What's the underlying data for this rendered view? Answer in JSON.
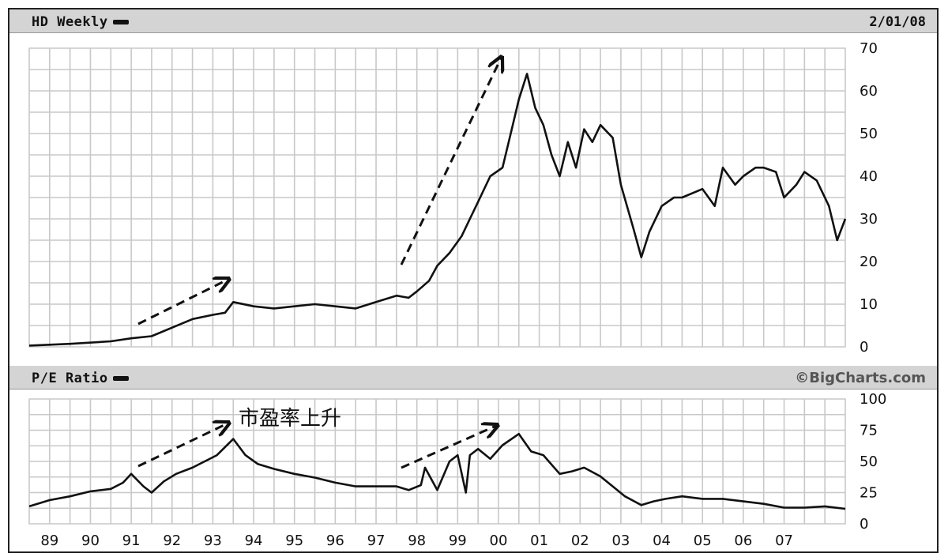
{
  "header": {
    "title": "HD Weekly",
    "date": "2/01/08"
  },
  "lower_header": {
    "title": "P/E Ratio",
    "brand": "©BigCharts.com"
  },
  "annotation": "市盈率上升",
  "colors": {
    "header_bg": "#d4d4d4",
    "grid": "#c8c8c8",
    "line": "#111111"
  },
  "chart_data": [
    {
      "type": "line",
      "title": "HD Weekly",
      "series": [
        {
          "name": "HD Weekly",
          "x": [
            1988.0,
            1989.0,
            1990.0,
            1990.5,
            1991.0,
            1991.5,
            1992.0,
            1992.5,
            1992.8,
            1993.0,
            1993.5,
            1994.0,
            1994.5,
            1995.0,
            1995.5,
            1996.0,
            1996.5,
            1997.0,
            1997.3,
            1997.5,
            1997.8,
            1998.0,
            1998.3,
            1998.6,
            1998.8,
            1999.0,
            1999.3,
            1999.6,
            1999.8,
            2000.0,
            2000.2,
            2000.4,
            2000.6,
            2000.8,
            2001.0,
            2001.2,
            2001.4,
            2001.6,
            2001.8,
            2002.0,
            2002.3,
            2002.5,
            2002.8,
            2003.0,
            2003.2,
            2003.5,
            2003.8,
            2004.0,
            2004.5,
            2004.8,
            2005.0,
            2005.3,
            2005.5,
            2005.8,
            2006.0,
            2006.3,
            2006.5,
            2006.8,
            2007.0,
            2007.3,
            2007.6,
            2007.8,
            2008.0
          ],
          "values": [
            0.3,
            0.7,
            1.3,
            2.0,
            2.5,
            4.5,
            6.5,
            7.5,
            8.0,
            10.5,
            9.5,
            9.0,
            9.5,
            10.0,
            9.5,
            9.0,
            10.5,
            12.0,
            11.5,
            13.0,
            15.5,
            19.0,
            22.0,
            26.0,
            30.0,
            34.0,
            40.0,
            42.0,
            50.0,
            58.0,
            64.0,
            56.0,
            52.0,
            45.0,
            40.0,
            48.0,
            42.0,
            51.0,
            48.0,
            52.0,
            49.0,
            38.0,
            28.0,
            21.0,
            27.0,
            33.0,
            35.0,
            35.0,
            37.0,
            33.0,
            42.0,
            38.0,
            40.0,
            42.0,
            42.0,
            41.0,
            35.0,
            38.0,
            41.0,
            39.0,
            33.0,
            25.0,
            30.0
          ]
        }
      ],
      "ylim": [
        0,
        70
      ],
      "yticks": [
        0,
        10,
        20,
        30,
        40,
        50,
        60,
        70
      ],
      "xlim": [
        1988,
        2008
      ],
      "xticks": [
        "89",
        "90",
        "91",
        "92",
        "93",
        "94",
        "95",
        "96",
        "97",
        "98",
        "99",
        "00",
        "01",
        "02",
        "03",
        "04",
        "05",
        "06",
        "07"
      ],
      "grid": true
    },
    {
      "type": "line",
      "title": "P/E Ratio",
      "series": [
        {
          "name": "P/E Ratio",
          "x": [
            1988.0,
            1988.5,
            1989.0,
            1989.5,
            1990.0,
            1990.3,
            1990.5,
            1990.8,
            1991.0,
            1991.3,
            1991.6,
            1992.0,
            1992.3,
            1992.6,
            1993.0,
            1993.3,
            1993.6,
            1994.0,
            1994.5,
            1995.0,
            1995.5,
            1996.0,
            1996.5,
            1997.0,
            1997.3,
            1997.6,
            1997.7,
            1998.0,
            1998.3,
            1998.5,
            1998.7,
            1998.8,
            1999.0,
            1999.3,
            1999.6,
            2000.0,
            2000.3,
            2000.6,
            2001.0,
            2001.3,
            2001.6,
            2002.0,
            2002.3,
            2002.6,
            2003.0,
            2003.3,
            2003.6,
            2004.0,
            2004.5,
            2005.0,
            2005.5,
            2006.0,
            2006.5,
            2007.0,
            2007.5,
            2008.0
          ],
          "values": [
            14,
            19,
            22,
            26,
            28,
            33,
            40,
            30,
            25,
            34,
            40,
            45,
            50,
            55,
            68,
            55,
            48,
            44,
            40,
            37,
            33,
            30,
            30,
            30,
            27,
            31,
            45,
            27,
            50,
            55,
            25,
            55,
            60,
            52,
            63,
            72,
            58,
            55,
            40,
            42,
            45,
            38,
            30,
            22,
            15,
            18,
            20,
            22,
            20,
            20,
            18,
            16,
            13,
            13,
            14,
            12
          ]
        }
      ],
      "ylim": [
        0,
        100
      ],
      "yticks": [
        0,
        25,
        50,
        75,
        100
      ],
      "xlim": [
        1988,
        2008
      ],
      "xticks": [
        "89",
        "90",
        "91",
        "92",
        "93",
        "94",
        "95",
        "96",
        "97",
        "98",
        "99",
        "00",
        "01",
        "02",
        "03",
        "04",
        "05",
        "06",
        "07"
      ],
      "grid": true
    }
  ]
}
